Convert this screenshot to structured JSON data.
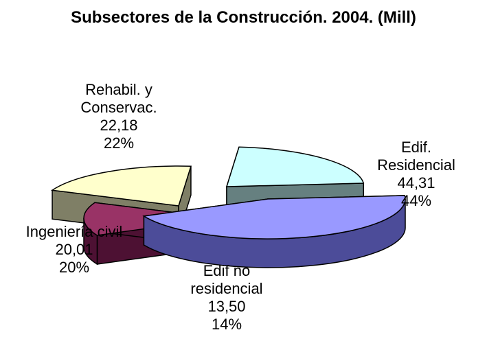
{
  "chart_data": {
    "type": "pie",
    "title": "Subsectores de la Construcción. 2004. (Mill)",
    "slices": [
      {
        "label_lines": [
          "Edif.",
          "Residencial"
        ],
        "value": 44.31,
        "value_text": "44,31",
        "percent_text": "44%",
        "color": "#9999ff",
        "side_color": "#4c4c99"
      },
      {
        "label_lines": [
          "Edif no",
          "residencial"
        ],
        "value": 13.5,
        "value_text": "13,50",
        "percent_text": "14%",
        "color": "#993366",
        "side_color": "#4d1133"
      },
      {
        "label_lines": [
          "Ingeniería civil"
        ],
        "value": 20.01,
        "value_text": "20,01",
        "percent_text": "20%",
        "color": "#ffffcc",
        "side_color": "#7f7f66"
      },
      {
        "label_lines": [
          "Rehabil. y",
          "Conservac."
        ],
        "value": 22.18,
        "value_text": "22,18",
        "percent_text": "22%",
        "color": "#ccffff",
        "side_color": "#668080"
      }
    ]
  }
}
